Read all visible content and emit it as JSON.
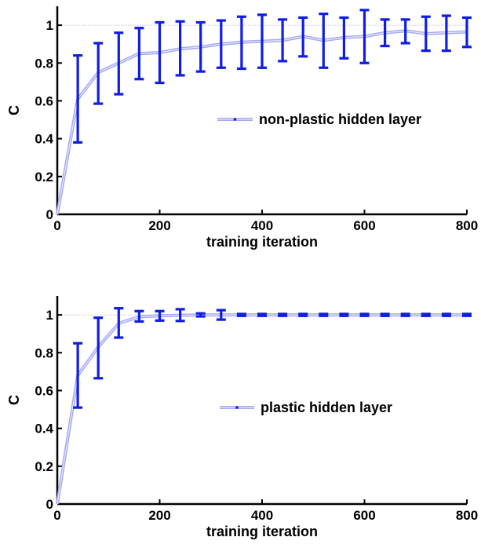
{
  "chart_data": [
    {
      "type": "line",
      "xlabel": "training iteration",
      "ylabel": "C",
      "xlim": [
        0,
        800
      ],
      "ylim": [
        0,
        1.1
      ],
      "xticks": [
        0,
        200,
        400,
        600,
        800
      ],
      "yticks": [
        0,
        0.2,
        0.4,
        0.6,
        0.8,
        1
      ],
      "grid": false,
      "reference_line": 1,
      "legend_position": "right-middle",
      "series": [
        {
          "name": "non-plastic hidden layer",
          "x": [
            0,
            40,
            80,
            120,
            160,
            200,
            240,
            280,
            320,
            360,
            400,
            440,
            480,
            520,
            560,
            600,
            640,
            680,
            720,
            760,
            800
          ],
          "y": [
            0,
            0.61,
            0.75,
            0.8,
            0.85,
            0.855,
            0.875,
            0.885,
            0.9,
            0.91,
            0.915,
            0.92,
            0.94,
            0.92,
            0.935,
            0.94,
            0.96,
            0.97,
            0.955,
            0.96,
            0.965
          ],
          "err_low": [
            null,
            0.38,
            0.585,
            0.635,
            0.715,
            0.695,
            0.735,
            0.755,
            0.775,
            0.77,
            0.775,
            0.81,
            0.835,
            0.775,
            0.825,
            0.8,
            0.89,
            0.905,
            0.865,
            0.865,
            0.885
          ],
          "err_high": [
            null,
            0.84,
            0.905,
            0.96,
            0.985,
            1.015,
            1.02,
            1.015,
            1.025,
            1.045,
            1.055,
            1.03,
            1.04,
            1.06,
            1.04,
            1.08,
            1.03,
            1.03,
            1.045,
            1.05,
            1.04
          ]
        }
      ]
    },
    {
      "type": "line",
      "xlabel": "training iteration",
      "ylabel": "C",
      "xlim": [
        0,
        800
      ],
      "ylim": [
        0,
        1.1
      ],
      "xticks": [
        0,
        200,
        400,
        600,
        800
      ],
      "yticks": [
        0,
        0.2,
        0.4,
        0.6,
        0.8,
        1
      ],
      "grid": false,
      "reference_line": 1,
      "legend_position": "right-middle",
      "series": [
        {
          "name": "plastic hidden layer",
          "x": [
            0,
            40,
            80,
            120,
            160,
            200,
            240,
            280,
            320,
            360,
            400,
            440,
            480,
            520,
            560,
            600,
            640,
            680,
            720,
            760,
            800
          ],
          "y": [
            0,
            0.68,
            0.83,
            0.955,
            0.99,
            0.995,
            0.998,
            1,
            1,
            1,
            1,
            1,
            1,
            1,
            1,
            1,
            1,
            1,
            1,
            1,
            1
          ],
          "err_low": [
            null,
            0.51,
            0.665,
            0.88,
            0.965,
            0.97,
            0.968,
            0.992,
            0.975,
            0.995,
            0.995,
            0.995,
            0.995,
            0.995,
            0.995,
            0.995,
            0.995,
            0.995,
            0.995,
            0.995,
            0.995
          ],
          "err_high": [
            null,
            0.85,
            0.985,
            1.035,
            1.02,
            1.02,
            1.03,
            1.008,
            1.025,
            1.005,
            1.005,
            1.005,
            1.005,
            1.005,
            1.005,
            1.005,
            1.005,
            1.005,
            1.005,
            1.005,
            1.005
          ]
        }
      ]
    }
  ],
  "colors": {
    "errorbar": "#0f1de6",
    "line": "#a5a9f2",
    "line_highlight": "#e6e7fc",
    "reference": "#c8c8c8",
    "axis": "#000000"
  }
}
